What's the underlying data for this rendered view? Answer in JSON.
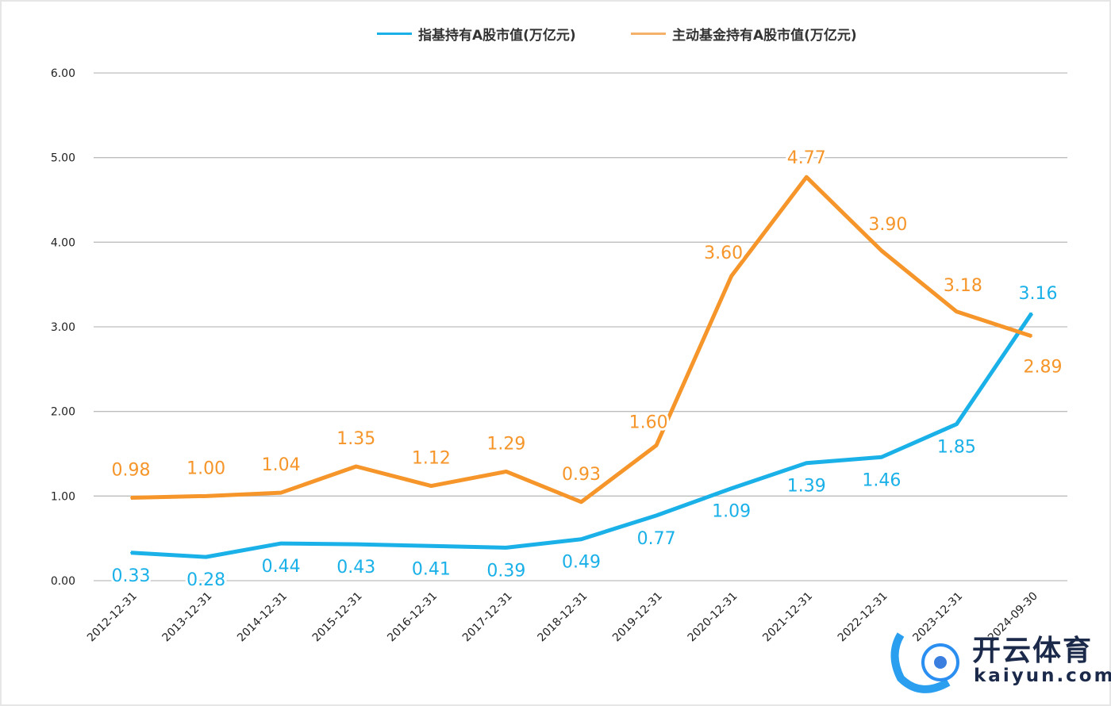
{
  "chart_data": {
    "type": "line",
    "title": "",
    "xlabel": "",
    "ylabel": "",
    "ylim": [
      0,
      6
    ],
    "yticks": [
      "0.00",
      "1.00",
      "2.00",
      "3.00",
      "4.00",
      "5.00",
      "6.00"
    ],
    "grid": true,
    "legend_position": "top-center",
    "categories": [
      "2012-12-31",
      "2013-12-31",
      "2014-12-31",
      "2015-12-31",
      "2016-12-31",
      "2017-12-31",
      "2018-12-31",
      "2019-12-31",
      "2020-12-31",
      "2021-12-31",
      "2022-12-31",
      "2023-12-31",
      "2024-09-30"
    ],
    "series": [
      {
        "name": "指基持有A股市值(万亿元)",
        "color": "#1ab0e8",
        "values": [
          0.33,
          0.28,
          0.44,
          0.43,
          0.41,
          0.39,
          0.49,
          0.77,
          1.09,
          1.39,
          1.46,
          1.85,
          3.16
        ],
        "labels": [
          "0.33",
          "0.28",
          "0.44",
          "0.43",
          "0.41",
          "0.39",
          "0.49",
          "0.77",
          "1.09",
          "1.39",
          "1.46",
          "1.85",
          "3.16"
        ]
      },
      {
        "name": "主动基金持有A股市值(万亿元)",
        "color": "#f5952a",
        "values": [
          0.98,
          1.0,
          1.04,
          1.35,
          1.12,
          1.29,
          0.93,
          1.6,
          3.6,
          4.77,
          3.9,
          3.18,
          2.89
        ],
        "labels": [
          "0.98",
          "1.00",
          "1.04",
          "1.35",
          "1.12",
          "1.29",
          "0.93",
          "1.60",
          "3.60",
          "4.77",
          "3.90",
          "3.18",
          "2.89"
        ]
      }
    ]
  },
  "watermark": {
    "cn": "开云体育",
    "en": "kaiyun.com"
  }
}
